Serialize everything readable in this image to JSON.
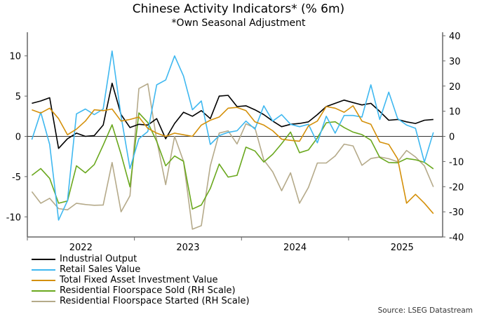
{
  "chart_data": {
    "type": "line",
    "title": "Chinese Activity Indicators* (% 6m)",
    "subtitle": "*Own Seasonal Adjustment",
    "source": "Source: LSEG Datastream",
    "x_start": "2022-01",
    "x_frequency": "monthly",
    "x_tick_labels": [
      "2022",
      "2023",
      "2024",
      "2025"
    ],
    "left_axis": {
      "ylim": [
        -12.5,
        12.5
      ],
      "ticks": [
        -10,
        -5,
        0,
        5,
        10
      ]
    },
    "right_axis": {
      "ylim": [
        -40,
        40
      ],
      "ticks": [
        -40,
        -30,
        -20,
        -10,
        0,
        10,
        20,
        30,
        40
      ]
    },
    "legend_position": "bottom-left",
    "series": [
      {
        "name": "Industrial Output",
        "axis": "left",
        "color": "#000000",
        "values": [
          4.1,
          4.4,
          4.8,
          -1.5,
          -0.3,
          0.4,
          0.0,
          0.1,
          1.4,
          6.6,
          2.7,
          1.1,
          1.5,
          1.4,
          2.2,
          -0.3,
          1.6,
          3.0,
          2.5,
          3.2,
          2.2,
          5.0,
          5.1,
          3.7,
          3.8,
          3.3,
          2.7,
          1.9,
          1.2,
          1.5,
          1.6,
          1.8,
          2.7,
          3.7,
          4.1,
          4.5,
          4.2,
          3.9,
          4.1,
          3.1,
          2.0,
          2.1,
          1.8,
          1.6,
          2.0,
          2.1
        ]
      },
      {
        "name": "Retail Sales Value",
        "axis": "left",
        "color": "#3fb8f0",
        "values": [
          -0.4,
          3.0,
          -1.0,
          -10.4,
          -8.0,
          2.8,
          3.4,
          2.7,
          3.4,
          10.6,
          2.5,
          -4.0,
          -0.3,
          0.6,
          6.4,
          7.0,
          10.0,
          7.5,
          3.3,
          4.4,
          -1.0,
          0.1,
          0.5,
          0.7,
          1.9,
          0.9,
          3.8,
          1.9,
          2.7,
          1.5,
          1.2,
          1.5,
          -0.8,
          2.5,
          0.4,
          2.6,
          2.6,
          2.4,
          6.4,
          2.1,
          5.5,
          2.2,
          1.4,
          1.0,
          -3.2,
          0.5
        ]
      },
      {
        "name": "Total Fixed Asset Investment Value",
        "axis": "left",
        "color": "#d4900a",
        "values": [
          3.3,
          2.9,
          3.5,
          2.2,
          0.2,
          0.9,
          1.9,
          3.3,
          3.2,
          3.4,
          1.9,
          2.1,
          2.4,
          1.0,
          0.4,
          0.0,
          0.4,
          0.2,
          0.0,
          1.4,
          2.0,
          2.4,
          3.5,
          3.6,
          3.2,
          1.8,
          1.4,
          0.7,
          -0.35,
          -0.5,
          -0.6,
          1.3,
          1.9,
          3.7,
          3.5,
          3.0,
          3.8,
          1.9,
          1.5,
          -0.7,
          -1.0,
          -2.8,
          -8.3,
          -7.2,
          -8.3,
          -9.6
        ]
      },
      {
        "name": "Residential Floorspace Sold (RH Scale)",
        "axis": "right",
        "color": "#6aa81e",
        "values": [
          -15.5,
          -12.8,
          -16.7,
          -26.6,
          -25.7,
          -11.7,
          -14.5,
          -11.2,
          -3.5,
          4.6,
          -7.1,
          -20.1,
          9.3,
          5.5,
          -2.0,
          -11.7,
          -7.8,
          -9.9,
          -28.9,
          -27.3,
          -20.7,
          -11.0,
          -16.2,
          -15.5,
          -4.3,
          -5.8,
          -10.2,
          -7.1,
          -2.9,
          1.7,
          -6.5,
          -5.4,
          -0.6,
          5.4,
          5.8,
          3.5,
          1.7,
          0.7,
          -1.5,
          -8.4,
          -10.4,
          -10.5,
          -8.8,
          -9.3,
          -10.3,
          -12.9
        ]
      },
      {
        "name": "Residential Floorspace Started (RH Scale)",
        "axis": "right",
        "color": "#b5aa8a",
        "values": [
          -22.0,
          -26.6,
          -24.6,
          -28.7,
          -29.2,
          -26.6,
          -27.1,
          -27.4,
          -27.3,
          -10.4,
          -30.0,
          -23.6,
          19.0,
          20.9,
          -1.5,
          -19.2,
          0.0,
          -9.9,
          -36.9,
          -35.5,
          -11.7,
          1.3,
          2.2,
          -3.0,
          5.0,
          3.4,
          -9.4,
          -14.1,
          -21.6,
          -14.5,
          -26.6,
          -20.3,
          -10.6,
          -10.6,
          -7.8,
          -3.1,
          -3.8,
          -11.5,
          -8.8,
          -8.2,
          -8.9,
          -10.1,
          -5.6,
          -8.2,
          -11.7,
          -20.1
        ]
      }
    ]
  }
}
